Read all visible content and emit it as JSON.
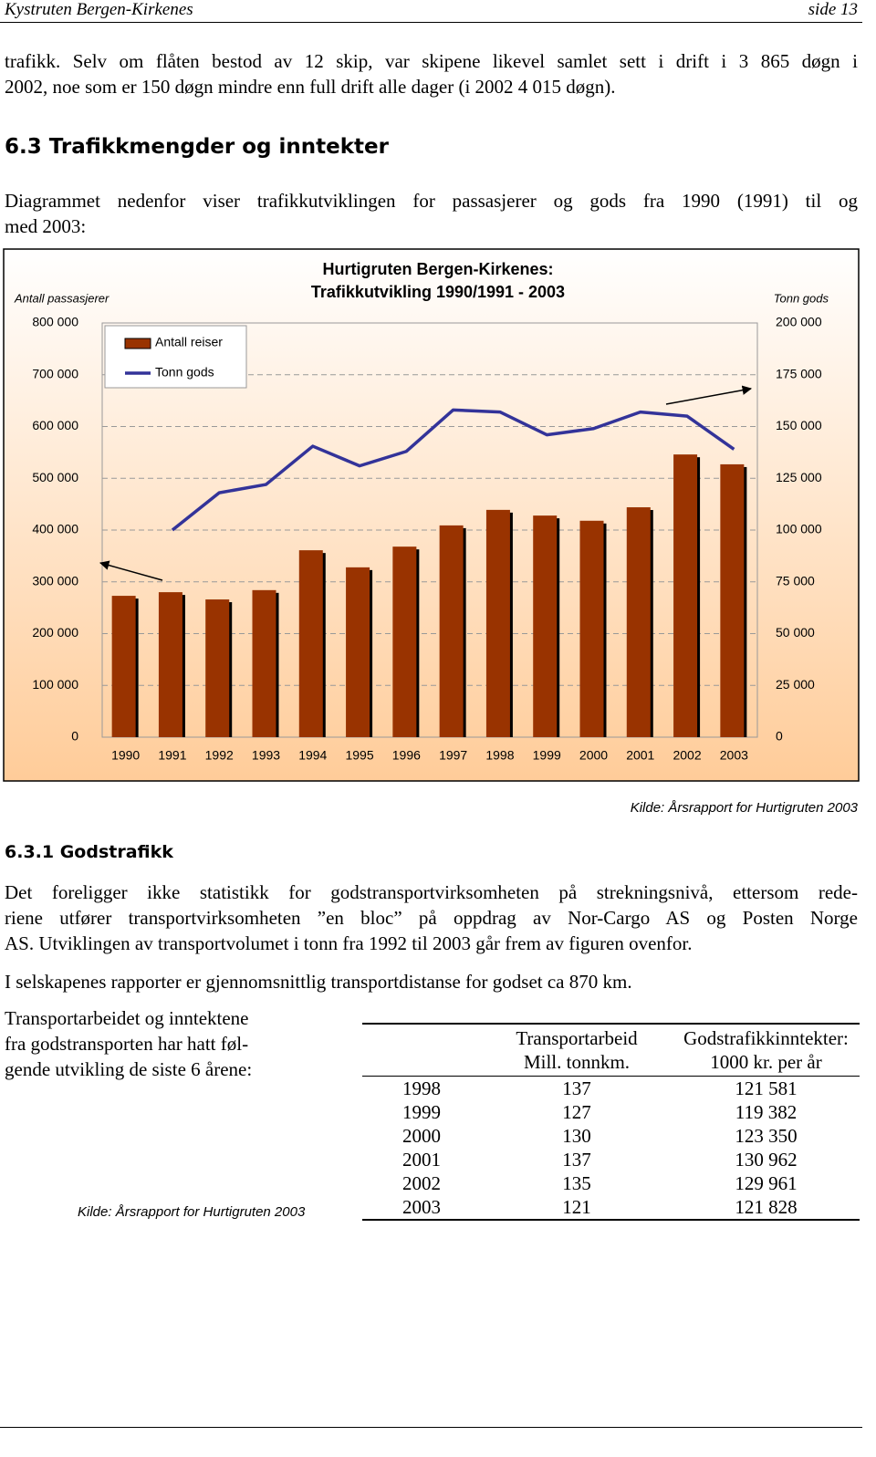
{
  "header": {
    "left": "Kystruten Bergen-Kirkenes",
    "right": "side 13"
  },
  "paragraph_1": [
    "trafikk. Selv om flåten bestod av 12 skip, var skipene likevel samlet sett i drift i 3 865 døgn i",
    "2002, noe som er 150 døgn mindre enn full drift alle dager (i 2002 4 015 døgn)."
  ],
  "section_heading": "6.3  Trafikkmengder og inntekter",
  "paragraph_2": [
    "Diagrammet nedenfor viser trafikkutviklingen for passasjerer og gods fra 1990 (1991) til og",
    "med 2003:"
  ],
  "chart_data": {
    "type": "bar",
    "title": [
      "Hurtigruten Bergen-Kirkenes:",
      "Trafikkutvikling 1990/1991 - 2003"
    ],
    "ylabel": "Antall passasjerer",
    "y2label": "Tonn gods",
    "categories": [
      "1990",
      "1991",
      "1992",
      "1993",
      "1994",
      "1995",
      "1996",
      "1997",
      "1998",
      "1999",
      "2000",
      "2001",
      "2002",
      "2003"
    ],
    "series": [
      {
        "name": "Antall reiser",
        "color": "#993300",
        "values": [
          273000,
          280000,
          266000,
          284000,
          361000,
          328000,
          368000,
          409000,
          439000,
          428000,
          418000,
          444000,
          546000,
          527000
        ]
      },
      {
        "name": "Tonn gods",
        "type": "line",
        "axis": "y2",
        "color": "#333399",
        "values": [
          null,
          100000,
          118000,
          122000,
          140500,
          131000,
          138000,
          158000,
          157000,
          146000,
          149000,
          157000,
          155000,
          139000
        ]
      }
    ],
    "ylim": [
      0,
      800000
    ],
    "yticks": [
      0,
      {
        "value": 100000,
        "label": "100 000"
      },
      {
        "value": 200000,
        "label": "200 000"
      },
      {
        "value": 300000,
        "label": "300 000"
      },
      {
        "value": 400000,
        "label": "400 000"
      },
      {
        "value": 500000,
        "label": "500 000"
      },
      {
        "value": 600000,
        "label": "600 000"
      },
      {
        "value": 700000,
        "label": "700 000"
      },
      {
        "value": 800000,
        "label": "800 000"
      }
    ],
    "y2lim": [
      0,
      200000
    ],
    "y2ticks": [
      0,
      {
        "value": 25000,
        "label": "25 000"
      },
      {
        "value": 50000,
        "label": "50 000"
      },
      {
        "value": 75000,
        "label": "75 000"
      },
      {
        "value": 100000,
        "label": "100 000"
      },
      {
        "value": 125000,
        "label": "125 000"
      },
      {
        "value": 150000,
        "label": "150 000"
      },
      {
        "value": 175000,
        "label": "175 000"
      },
      {
        "value": 200000,
        "label": "200 000"
      }
    ],
    "grid": true,
    "legend": "upper left"
  },
  "chart_source": "Kilde: Årsrapport for Hurtigruten 2003",
  "subsection_heading": "6.3.1  Godstrafikk",
  "paragraph_3": [
    "Det foreligger ikke statistikk for godstransportvirksomheten på strekningsnivå, ettersom rede-",
    "riene utfører transportvirksomheten ”en bloc” på oppdrag av Nor-Cargo AS og Posten Norge",
    "AS. Utviklingen av transportvolumet i tonn fra 1992 til 2003 går frem av figuren ovenfor."
  ],
  "paragraph_4": "I selskapenes rapporter er gjennomsnittlig transportdistanse for godset ca 870 km.",
  "paragraph_5": [
    "Transportarbeidet og inntektene",
    "fra godstransporten har hatt føl-",
    "gende utvikling de siste 6 årene:"
  ],
  "table_source": "Kilde: Årsrapport for Hurtigruten 2003",
  "table": {
    "header": [
      [
        "Transportarbeid",
        "Mill. tonnkm."
      ],
      [
        "Godstrafikkinntekter:",
        "1000 kr. per år"
      ]
    ],
    "rows": [
      [
        1998,
        137,
        "121 581"
      ],
      [
        1999,
        127,
        "119 382"
      ],
      [
        2000,
        130,
        "123 350"
      ],
      [
        2001,
        137,
        "130 962"
      ],
      [
        2002,
        135,
        "129 961"
      ],
      [
        2003,
        121,
        "121 828"
      ]
    ]
  }
}
